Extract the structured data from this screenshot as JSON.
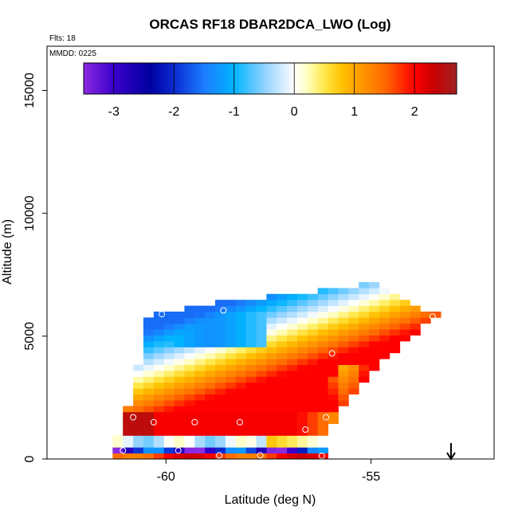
{
  "chart_data": {
    "type": "heatmap",
    "title": "ORCAS RF18 DBAR2DCA_LWO (Log)",
    "annotations": {
      "flights": "Flts: 18",
      "mmdd": "MMDD: 0225"
    },
    "xlabel": "Latitude (deg N)",
    "ylabel": "Altitude (m)",
    "xlim": [
      -62.9,
      -52.0
    ],
    "ylim": [
      0,
      16800
    ],
    "x_ticks": [
      {
        "value": -60,
        "label": "-60"
      },
      {
        "value": -55,
        "label": "-55"
      }
    ],
    "y_ticks": [
      {
        "value": 0,
        "label": "0"
      },
      {
        "value": 5000,
        "label": "5000"
      },
      {
        "value": 10000,
        "label": "10000"
      },
      {
        "value": 15000,
        "label": "15000"
      }
    ],
    "colorbar": {
      "range": [
        -3.5,
        2.7
      ],
      "ticks": [
        {
          "value": -3,
          "label": "-3"
        },
        {
          "value": -2,
          "label": "-2"
        },
        {
          "value": -1,
          "label": "-1"
        },
        {
          "value": 0,
          "label": "0"
        },
        {
          "value": 1,
          "label": "1"
        },
        {
          "value": 2,
          "label": "2"
        }
      ],
      "stops": [
        {
          "v": -3.5,
          "c": "#8a2be2"
        },
        {
          "v": -3.0,
          "c": "#3a00cc"
        },
        {
          "v": -2.4,
          "c": "#0000a0"
        },
        {
          "v": -2.0,
          "c": "#0a2ad0"
        },
        {
          "v": -1.5,
          "c": "#1c7cff"
        },
        {
          "v": -1.0,
          "c": "#00b4ff"
        },
        {
          "v": -0.5,
          "c": "#8fd2ff"
        },
        {
          "v": -0.15,
          "c": "#dcf0ff"
        },
        {
          "v": 0.0,
          "c": "#ffffff"
        },
        {
          "v": 0.2,
          "c": "#ffffc8"
        },
        {
          "v": 0.5,
          "c": "#ffe84a"
        },
        {
          "v": 0.8,
          "c": "#ffc000"
        },
        {
          "v": 1.1,
          "c": "#ff9a00"
        },
        {
          "v": 1.5,
          "c": "#ff6a00"
        },
        {
          "v": 2.0,
          "c": "#ff0000"
        },
        {
          "v": 2.3,
          "c": "#cc0000"
        },
        {
          "v": 2.7,
          "c": "#a02020"
        }
      ]
    },
    "field": {
      "lat_step": 0.25,
      "alt_step": 240,
      "stripe_layers": [
        {
          "alt": 840,
          "value": 0.7
        },
        {
          "alt": 600,
          "value": 0.9
        },
        {
          "alt": 360,
          "value": -2.4
        },
        {
          "alt": 120,
          "value": 1.8
        }
      ]
    },
    "sample_points": [
      {
        "lat": -60.1,
        "alt": 5900
      },
      {
        "lat": -58.6,
        "alt": 6050
      },
      {
        "lat": -55.95,
        "alt": 4300
      },
      {
        "lat": -53.5,
        "alt": 5800
      },
      {
        "lat": -60.8,
        "alt": 1700
      },
      {
        "lat": -60.3,
        "alt": 1500
      },
      {
        "lat": -59.3,
        "alt": 1500
      },
      {
        "lat": -58.2,
        "alt": 1500
      },
      {
        "lat": -56.1,
        "alt": 1700
      },
      {
        "lat": -56.6,
        "alt": 1200
      },
      {
        "lat": -59.7,
        "alt": 350
      },
      {
        "lat": -58.7,
        "alt": 150
      },
      {
        "lat": -57.7,
        "alt": 150
      },
      {
        "lat": -56.2,
        "alt": 130
      },
      {
        "lat": -61.05,
        "alt": 350
      }
    ],
    "arrow_marker": {
      "lat": -53.05,
      "direction": "down"
    }
  }
}
